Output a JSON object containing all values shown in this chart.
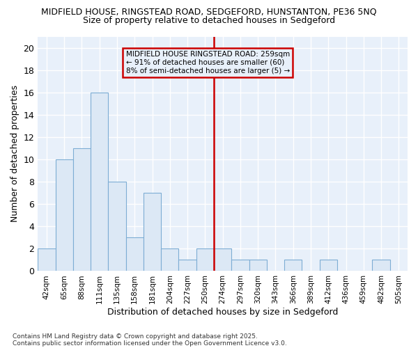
{
  "title_line1": "MIDFIELD HOUSE, RINGSTEAD ROAD, SEDGEFORD, HUNSTANTON, PE36 5NQ",
  "title_line2": "Size of property relative to detached houses in Sedgeford",
  "xlabel": "Distribution of detached houses by size in Sedgeford",
  "ylabel": "Number of detached properties",
  "annotation_line1": "MIDFIELD HOUSE RINGSTEAD ROAD: 259sqm",
  "annotation_line2": "← 91% of detached houses are smaller (60)",
  "annotation_line3": "8% of semi-detached houses are larger (5) →",
  "categories": [
    "42sqm",
    "65sqm",
    "88sqm",
    "111sqm",
    "135sqm",
    "158sqm",
    "181sqm",
    "204sqm",
    "227sqm",
    "250sqm",
    "274sqm",
    "297sqm",
    "320sqm",
    "343sqm",
    "366sqm",
    "389sqm",
    "412sqm",
    "436sqm",
    "459sqm",
    "482sqm",
    "505sqm"
  ],
  "values": [
    2,
    10,
    11,
    16,
    8,
    3,
    7,
    2,
    1,
    2,
    2,
    1,
    1,
    0,
    1,
    0,
    1,
    0,
    0,
    1,
    0
  ],
  "bar_color": "#dce8f5",
  "bar_edge_color": "#7dadd4",
  "reference_line_x": 9.5,
  "ylim": [
    0,
    21
  ],
  "yticks": [
    0,
    2,
    4,
    6,
    8,
    10,
    12,
    14,
    16,
    18,
    20
  ],
  "background_color": "#ffffff",
  "plot_bg_color": "#e8f0fa",
  "grid_color": "#ffffff",
  "annotation_box_color": "#cc0000",
  "vline_color": "#cc0000",
  "footer_line1": "Contains HM Land Registry data © Crown copyright and database right 2025.",
  "footer_line2": "Contains public sector information licensed under the Open Government Licence v3.0."
}
